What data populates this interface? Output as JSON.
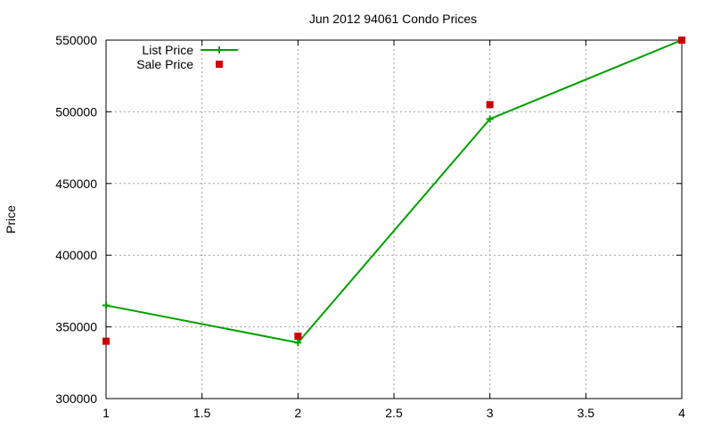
{
  "chart_data": {
    "type": "line",
    "title": "Jun 2012 94061 Condo Prices",
    "xlabel": "",
    "ylabel": "Price",
    "x": [
      1,
      2,
      3,
      4
    ],
    "xlim": [
      1,
      4
    ],
    "ylim": [
      300000,
      550000
    ],
    "xticks": [
      "1",
      "1.5",
      "2",
      "2.5",
      "3",
      "3.5",
      "4"
    ],
    "yticks": [
      "300000",
      "350000",
      "400000",
      "450000",
      "500000",
      "550000"
    ],
    "grid": true,
    "legend_position": "top-left",
    "series": [
      {
        "name": "List Price",
        "style": "line+points",
        "color": "#00a000",
        "values": [
          365000,
          339000,
          495000,
          550000
        ]
      },
      {
        "name": "Sale Price",
        "style": "points",
        "color": "#cc0000",
        "values": [
          340000,
          343500,
          505000,
          550000
        ]
      }
    ]
  }
}
